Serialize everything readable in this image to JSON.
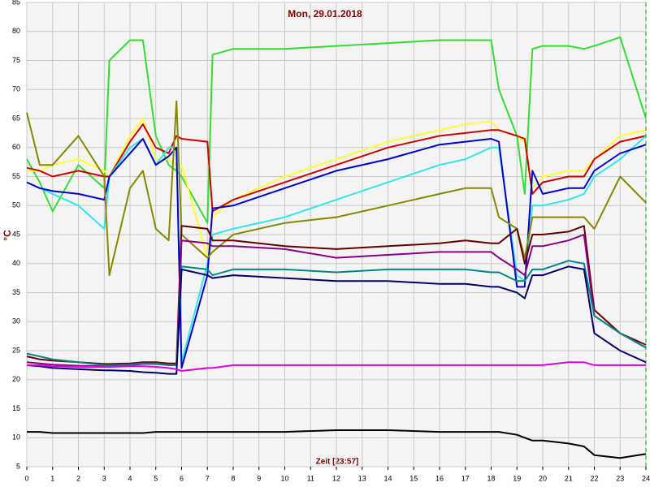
{
  "chart_data": {
    "type": "line",
    "title": "Mon, 29.01.2018",
    "y_label": "°C",
    "x_label": "Zeit [23:57]",
    "xlim": [
      0,
      24
    ],
    "xticks": [
      0,
      1,
      2,
      3,
      4,
      5,
      6,
      7,
      8,
      9,
      10,
      11,
      12,
      13,
      14,
      15,
      16,
      17,
      18,
      19,
      20,
      21,
      22,
      23,
      24
    ],
    "ylim": [
      5,
      85
    ],
    "yticks": [
      5,
      10,
      15,
      20,
      25,
      30,
      35,
      40,
      45,
      50,
      55,
      60,
      65,
      70,
      75,
      80,
      85
    ],
    "grid": true,
    "x": [
      0,
      0.5,
      1,
      2,
      3,
      3.2,
      4,
      4.5,
      5,
      5.5,
      5.8,
      6,
      7,
      7.2,
      8,
      10,
      12,
      14,
      16,
      17,
      18,
      18.3,
      19,
      19.3,
      19.6,
      20,
      21,
      21.6,
      22,
      23,
      24
    ],
    "series": [
      {
        "color": "#33dd33",
        "values": [
          58,
          54,
          49,
          57,
          53,
          75,
          78.5,
          78.5,
          62,
          57,
          56,
          55,
          47,
          76,
          77,
          77,
          77.5,
          78,
          78.5,
          78.5,
          78.5,
          70,
          62,
          52,
          77,
          77.5,
          77.5,
          77,
          77.5,
          79,
          65
        ]
      },
      {
        "color": "#ffff33",
        "values": [
          56,
          56,
          57,
          58,
          56,
          55,
          62,
          65,
          58,
          58,
          57,
          57,
          41,
          48,
          51,
          55,
          58,
          61,
          63,
          64,
          64.5,
          63,
          62,
          61,
          53,
          55,
          56,
          56,
          58,
          62,
          63
        ]
      },
      {
        "color": "#cc0000",
        "values": [
          56.5,
          56,
          55,
          56,
          55,
          55,
          61,
          64,
          60,
          59,
          62,
          61.5,
          61,
          49,
          51,
          54,
          57,
          60,
          62,
          62.5,
          63,
          63,
          62,
          61.5,
          52,
          54,
          55,
          55,
          58,
          61,
          62
        ]
      },
      {
        "color": "#33e6e6",
        "values": [
          54,
          53,
          52,
          50,
          46,
          55,
          60,
          61.5,
          57,
          60,
          60,
          23,
          40,
          45,
          46,
          48,
          51,
          54,
          57,
          58,
          60,
          60,
          38,
          37,
          50,
          50,
          51,
          52,
          55,
          58,
          62
        ]
      },
      {
        "color": "#0000cc",
        "values": [
          54,
          53,
          52.5,
          52,
          51,
          55,
          59,
          61.5,
          57,
          58.5,
          60,
          22,
          38,
          49.5,
          50,
          53,
          56,
          58,
          60.5,
          61,
          61.5,
          61,
          36,
          36,
          56,
          52,
          53,
          53,
          56,
          59,
          60.5
        ]
      },
      {
        "color": "#888800",
        "values": [
          66,
          57,
          57,
          62,
          55,
          38,
          53,
          56,
          46,
          44,
          68,
          45,
          41,
          42,
          45,
          47,
          48,
          50,
          52,
          53,
          53,
          48,
          46,
          41,
          48,
          48,
          48,
          48,
          46,
          55,
          50.5
        ]
      },
      {
        "color": "#660000",
        "values": [
          24,
          23.5,
          23.3,
          23,
          22.7,
          22.7,
          22.8,
          23,
          23,
          22.8,
          22.8,
          46.5,
          46,
          44,
          44,
          43,
          42.5,
          43,
          43.5,
          44,
          43.5,
          43.5,
          46,
          40,
          45,
          45,
          45.5,
          46.5,
          32,
          28,
          26
        ]
      },
      {
        "color": "#880088",
        "values": [
          23,
          22.8,
          22.6,
          22.4,
          22.3,
          22.3,
          22.5,
          22.7,
          22.7,
          22.5,
          22.5,
          44,
          43.5,
          43,
          43,
          42.5,
          41,
          41.5,
          42,
          42,
          42,
          41,
          39,
          38,
          43,
          43,
          44,
          45,
          31,
          28,
          25.5
        ]
      },
      {
        "color": "#008888",
        "values": [
          24.5,
          24,
          23.5,
          23,
          22.5,
          22.5,
          22.6,
          22.8,
          22.8,
          22.5,
          22.5,
          39.5,
          39,
          38,
          39,
          39,
          38.5,
          39,
          39,
          39,
          38.5,
          38.5,
          37,
          37,
          39,
          39,
          40.5,
          40,
          31,
          28,
          25.5
        ]
      },
      {
        "color": "#000066",
        "values": [
          22.5,
          22.3,
          22,
          21.8,
          21.6,
          21.6,
          21.5,
          21.3,
          21.2,
          21,
          21,
          39,
          38,
          37.5,
          38,
          37.5,
          37,
          37,
          36.5,
          36.5,
          36,
          36,
          35,
          34,
          38,
          38,
          39.5,
          39,
          28,
          25,
          23
        ]
      },
      {
        "color": "#dd00dd",
        "values": [
          22.5,
          22.5,
          22.3,
          22.2,
          22.2,
          22.2,
          22.3,
          22.3,
          22.2,
          22,
          21.8,
          21.5,
          22,
          22,
          22.5,
          22.5,
          22.5,
          22.5,
          22.5,
          22.5,
          22.5,
          22.5,
          22.5,
          22.5,
          22.5,
          22.5,
          23,
          23,
          22.5,
          22.5,
          22.5
        ]
      },
      {
        "color": "#000000",
        "values": [
          11,
          11,
          10.8,
          10.8,
          10.8,
          10.8,
          10.8,
          10.8,
          11,
          11,
          11,
          11,
          11,
          11,
          11,
          11,
          11.3,
          11.3,
          11,
          11,
          11,
          11,
          10.5,
          10,
          9.5,
          9.5,
          9,
          8.5,
          7,
          6.5,
          7.2
        ]
      }
    ]
  }
}
